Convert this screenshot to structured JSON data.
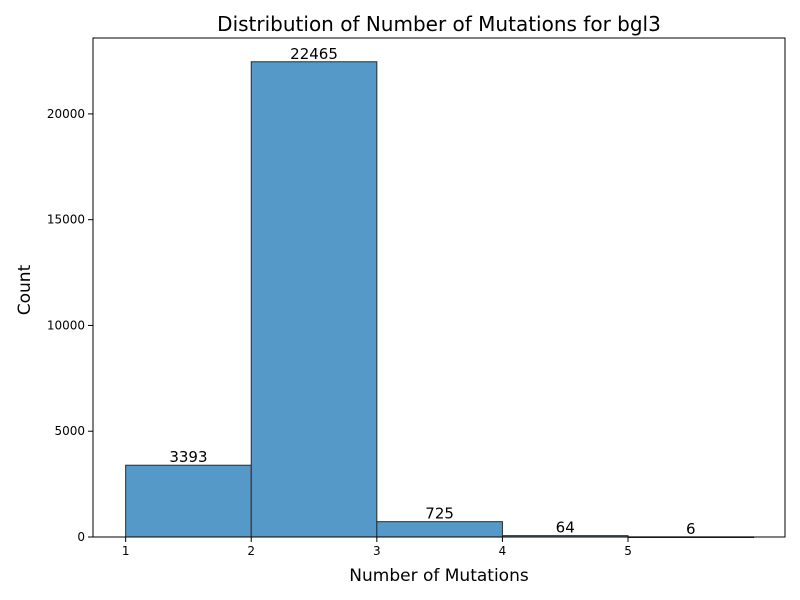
{
  "chart_data": {
    "type": "bar",
    "title": "Distribution of Number of Mutations for bgl3",
    "xlabel": "Number of Mutations",
    "ylabel": "Count",
    "bins": [
      {
        "start": 1,
        "end": 2,
        "value": 3393,
        "label": "3393"
      },
      {
        "start": 2,
        "end": 3,
        "value": 22465,
        "label": "22465"
      },
      {
        "start": 3,
        "end": 4,
        "value": 725,
        "label": "725"
      },
      {
        "start": 4,
        "end": 5,
        "value": 64,
        "label": "64"
      },
      {
        "start": 5,
        "end": 6,
        "value": 6,
        "label": "6"
      }
    ],
    "xticks": [
      "1",
      "2",
      "3",
      "4",
      "5"
    ],
    "yticks": [
      "0",
      "5000",
      "10000",
      "15000",
      "20000"
    ],
    "xlim": [
      0.74,
      6.25
    ],
    "ylim": [
      0,
      23588
    ],
    "grid": false,
    "bar_color": "#5499c7",
    "edge_color": "#2b2b2b"
  }
}
